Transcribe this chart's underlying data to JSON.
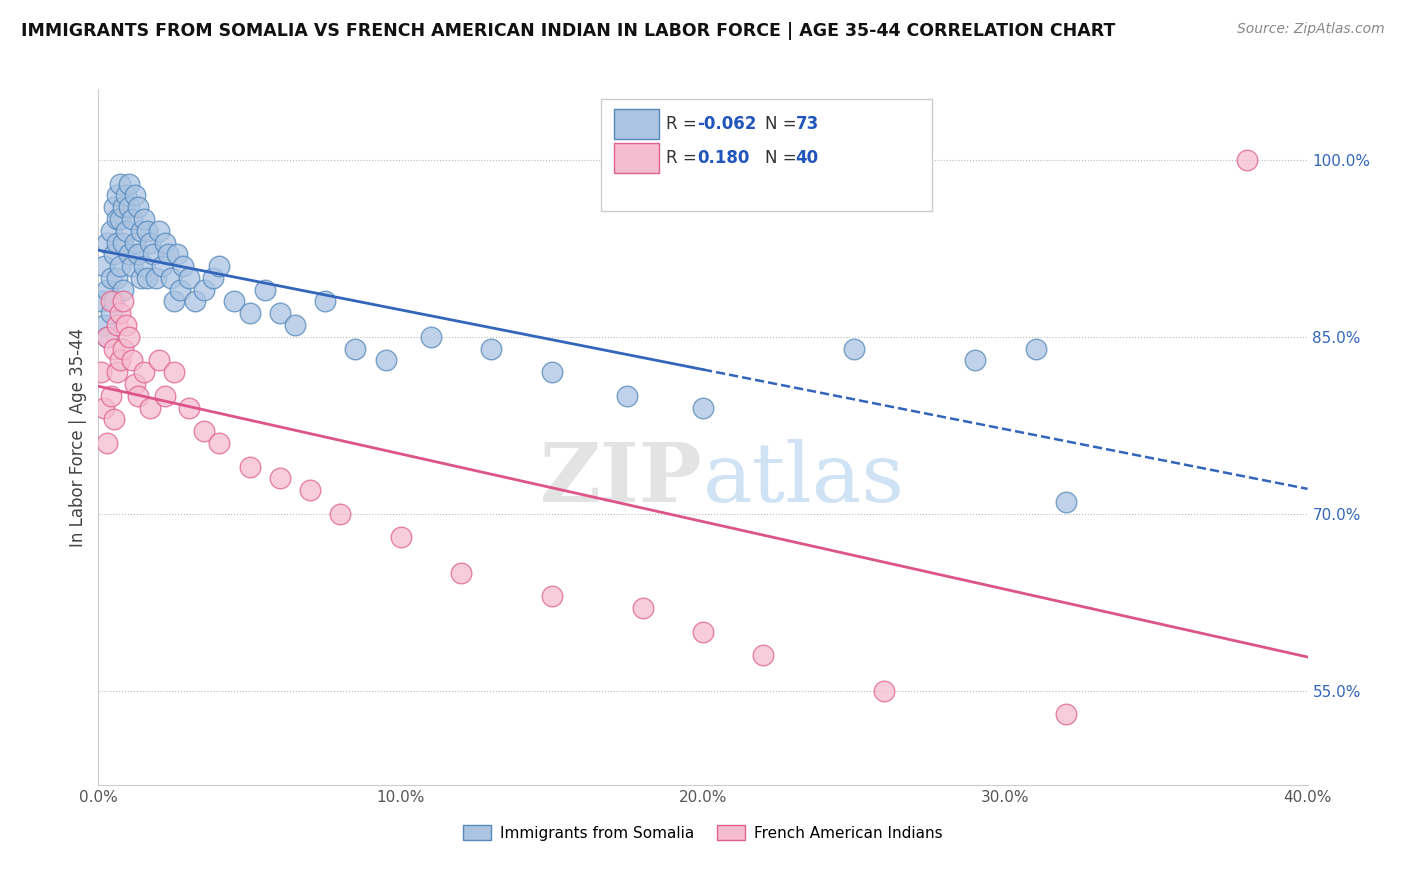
{
  "title": "IMMIGRANTS FROM SOMALIA VS FRENCH AMERICAN INDIAN IN LABOR FORCE | AGE 35-44 CORRELATION CHART",
  "source": "Source: ZipAtlas.com",
  "ylabel": "In Labor Force | Age 35-44",
  "xlim": [
    0.0,
    0.4
  ],
  "ylim": [
    0.47,
    1.06
  ],
  "yticks": [
    0.55,
    0.7,
    0.85,
    1.0
  ],
  "ytick_labels": [
    "55.0%",
    "70.0%",
    "85.0%",
    "100.0%"
  ],
  "xticks": [
    0.0,
    0.1,
    0.2,
    0.3,
    0.4
  ],
  "xtick_labels": [
    "0.0%",
    "10.0%",
    "20.0%",
    "30.0%",
    "40.0%"
  ],
  "blue_R": -0.062,
  "blue_N": 73,
  "pink_R": 0.18,
  "pink_N": 40,
  "blue_color": "#aac4e2",
  "blue_edge": "#5588bb",
  "pink_color": "#f5bdd0",
  "pink_edge": "#e06090",
  "blue_line_color": "#3366bb",
  "pink_line_color": "#dd5588",
  "legend_label_blue": "Immigrants from Somalia",
  "legend_label_pink": "French American Indians",
  "watermark_zip": "ZIP",
  "watermark_atlas": "atlas",
  "blue_scatter_x": [
    0.001,
    0.002,
    0.002,
    0.003,
    0.003,
    0.003,
    0.004,
    0.004,
    0.004,
    0.005,
    0.005,
    0.005,
    0.006,
    0.006,
    0.006,
    0.006,
    0.007,
    0.007,
    0.007,
    0.008,
    0.008,
    0.008,
    0.009,
    0.009,
    0.01,
    0.01,
    0.01,
    0.011,
    0.011,
    0.012,
    0.012,
    0.013,
    0.013,
    0.014,
    0.014,
    0.015,
    0.015,
    0.016,
    0.016,
    0.017,
    0.018,
    0.019,
    0.02,
    0.021,
    0.022,
    0.023,
    0.024,
    0.025,
    0.026,
    0.027,
    0.028,
    0.03,
    0.032,
    0.035,
    0.038,
    0.04,
    0.045,
    0.05,
    0.055,
    0.06,
    0.065,
    0.075,
    0.085,
    0.095,
    0.11,
    0.13,
    0.15,
    0.175,
    0.2,
    0.25,
    0.29,
    0.31,
    0.32
  ],
  "blue_scatter_y": [
    0.88,
    0.91,
    0.86,
    0.93,
    0.89,
    0.85,
    0.94,
    0.9,
    0.87,
    0.96,
    0.92,
    0.88,
    0.97,
    0.95,
    0.93,
    0.9,
    0.98,
    0.95,
    0.91,
    0.96,
    0.93,
    0.89,
    0.97,
    0.94,
    0.98,
    0.96,
    0.92,
    0.95,
    0.91,
    0.97,
    0.93,
    0.96,
    0.92,
    0.94,
    0.9,
    0.95,
    0.91,
    0.94,
    0.9,
    0.93,
    0.92,
    0.9,
    0.94,
    0.91,
    0.93,
    0.92,
    0.9,
    0.88,
    0.92,
    0.89,
    0.91,
    0.9,
    0.88,
    0.89,
    0.9,
    0.91,
    0.88,
    0.87,
    0.89,
    0.87,
    0.86,
    0.88,
    0.84,
    0.83,
    0.85,
    0.84,
    0.82,
    0.8,
    0.79,
    0.84,
    0.83,
    0.84,
    0.71
  ],
  "pink_scatter_x": [
    0.001,
    0.002,
    0.003,
    0.003,
    0.004,
    0.004,
    0.005,
    0.005,
    0.006,
    0.006,
    0.007,
    0.007,
    0.008,
    0.008,
    0.009,
    0.01,
    0.011,
    0.012,
    0.013,
    0.015,
    0.017,
    0.02,
    0.022,
    0.025,
    0.03,
    0.035,
    0.04,
    0.05,
    0.06,
    0.07,
    0.08,
    0.1,
    0.12,
    0.15,
    0.18,
    0.2,
    0.22,
    0.26,
    0.32,
    0.38
  ],
  "pink_scatter_y": [
    0.82,
    0.79,
    0.85,
    0.76,
    0.88,
    0.8,
    0.84,
    0.78,
    0.86,
    0.82,
    0.87,
    0.83,
    0.88,
    0.84,
    0.86,
    0.85,
    0.83,
    0.81,
    0.8,
    0.82,
    0.79,
    0.83,
    0.8,
    0.82,
    0.79,
    0.77,
    0.76,
    0.74,
    0.73,
    0.72,
    0.7,
    0.68,
    0.65,
    0.63,
    0.62,
    0.6,
    0.58,
    0.55,
    0.53,
    1.0
  ]
}
